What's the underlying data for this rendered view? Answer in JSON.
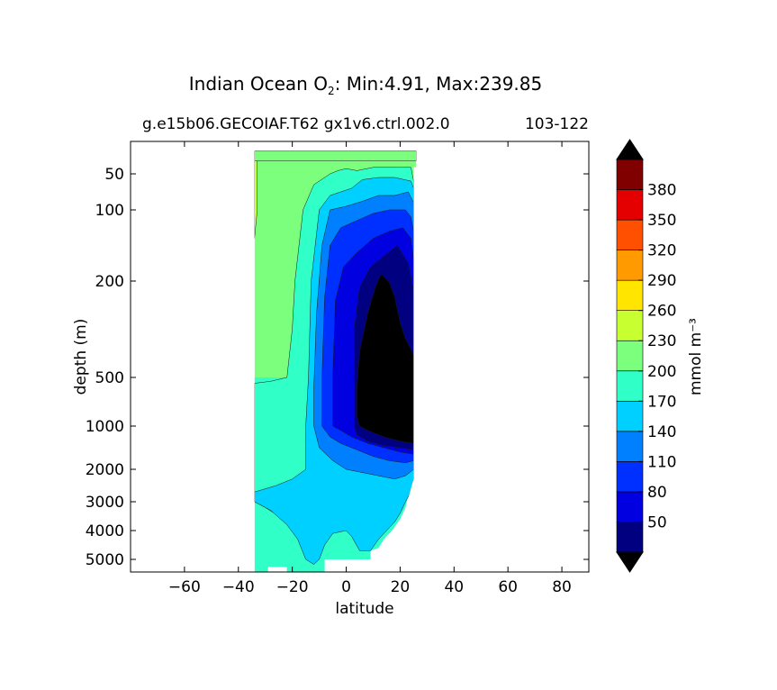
{
  "title": "Indian Ocean O",
  "title_sub": "2",
  "title_rest": ": Min:4.91, Max:239.85",
  "subtitle_left": "g.e15b06.GECOIAF.T62 gx1v6.ctrl.002.0",
  "subtitle_right": "103-122",
  "chart_data": {
    "type": "heatmap",
    "title": "Indian Ocean O2: Min:4.91, Max:239.85",
    "xlabel": "latitude",
    "ylabel": "depth (m)",
    "xlim": [
      -80,
      90
    ],
    "xticks": [
      -60,
      -40,
      -20,
      0,
      20,
      40,
      60,
      80
    ],
    "xtick_labels": [
      "−60",
      "−40",
      "−20",
      "0",
      "20",
      "40",
      "60",
      "80"
    ],
    "yticks": [
      50,
      100,
      200,
      500,
      1000,
      2000,
      3000,
      4000,
      5000
    ],
    "ytick_labels": [
      "50",
      "100",
      "200",
      "500",
      "1000",
      "2000",
      "3000",
      "4000",
      "5000"
    ],
    "yscale": "custom depth (compressed upper ocean), inverted",
    "colorbar": {
      "label": "mmol m⁻³",
      "levels": [
        20,
        50,
        80,
        110,
        140,
        170,
        200,
        230,
        260,
        290,
        320,
        350,
        380,
        410
      ],
      "tick_labels": [
        "50",
        "80",
        "110",
        "140",
        "170",
        "200",
        "230",
        "260",
        "290",
        "320",
        "350",
        "380"
      ],
      "colors": [
        "#000080",
        "#0000e0",
        "#0030ff",
        "#0080ff",
        "#00d0ff",
        "#30ffc8",
        "#7cff7c",
        "#c8ff30",
        "#ffe500",
        "#ff9a00",
        "#ff4f00",
        "#e40000",
        "#800000"
      ],
      "extend_low_color": "#000000",
      "extend_high_color": "#000000"
    },
    "contours": [
      {
        "level": 230,
        "color": "#c8ff30",
        "pts": [
          [
            -34,
            15
          ],
          [
            -33,
            15
          ],
          [
            -33,
            100
          ],
          [
            -34,
            140
          ]
        ]
      },
      {
        "level": 200,
        "color": "#7cff7c",
        "pts": [
          [
            -34,
            15
          ],
          [
            26,
            15
          ],
          [
            26,
            30
          ],
          [
            -34,
            30
          ]
        ]
      },
      {
        "level": 170,
        "color": "#30ffc8",
        "pts": [
          [
            -34,
            560
          ],
          [
            -28,
            540
          ],
          [
            -22,
            500
          ],
          [
            -20,
            350
          ],
          [
            -19,
            200
          ],
          [
            -16,
            100
          ],
          [
            -12,
            65
          ],
          [
            -6,
            50
          ],
          [
            -3,
            45
          ],
          [
            0,
            42
          ],
          [
            4,
            45
          ],
          [
            10,
            40
          ],
          [
            20,
            40
          ],
          [
            24,
            40
          ],
          [
            25,
            60
          ],
          [
            25,
            1500
          ],
          [
            24,
            2000
          ],
          [
            20,
            2400
          ],
          [
            15,
            2800
          ],
          [
            10,
            3200
          ],
          [
            0,
            3400
          ],
          [
            -5,
            3500
          ],
          [
            -10,
            3700
          ],
          [
            -15,
            3800
          ],
          [
            -20,
            3700
          ],
          [
            -25,
            3500
          ],
          [
            -30,
            3200
          ],
          [
            -34,
            3000
          ]
        ]
      },
      {
        "level": 140,
        "color": "#00d0ff",
        "pts": [
          [
            -15,
            2000
          ],
          [
            -15,
            1000
          ],
          [
            -14,
            500
          ],
          [
            -13,
            200
          ],
          [
            -10,
            100
          ],
          [
            -6,
            80
          ],
          [
            -2,
            75
          ],
          [
            2,
            70
          ],
          [
            6,
            58
          ],
          [
            12,
            55
          ],
          [
            18,
            55
          ],
          [
            24,
            60
          ],
          [
            25,
            70
          ],
          [
            25,
            2300
          ],
          [
            24,
            2700
          ],
          [
            22,
            3000
          ],
          [
            20,
            3400
          ],
          [
            18,
            3700
          ],
          [
            15,
            4000
          ],
          [
            12,
            4300
          ],
          [
            9,
            4700
          ],
          [
            5,
            4700
          ],
          [
            2,
            4200
          ],
          [
            0,
            4000
          ],
          [
            -5,
            4100
          ],
          [
            -8,
            4500
          ],
          [
            -10,
            5000
          ],
          [
            -12,
            5200
          ],
          [
            -15,
            5000
          ],
          [
            -18,
            4300
          ],
          [
            -22,
            3800
          ],
          [
            -28,
            3300
          ],
          [
            -34,
            3000
          ],
          [
            -34,
            2700
          ],
          [
            -26,
            2500
          ],
          [
            -20,
            2300
          ]
        ]
      },
      {
        "level": 110,
        "color": "#0080ff",
        "pts": [
          [
            -12,
            1000
          ],
          [
            -12,
            600
          ],
          [
            -11,
            300
          ],
          [
            -9,
            150
          ],
          [
            -6,
            100
          ],
          [
            0,
            95
          ],
          [
            6,
            88
          ],
          [
            12,
            80
          ],
          [
            18,
            80
          ],
          [
            23,
            75
          ],
          [
            25,
            90
          ],
          [
            25,
            2000
          ],
          [
            22,
            2200
          ],
          [
            18,
            2300
          ],
          [
            12,
            2200
          ],
          [
            6,
            2100
          ],
          [
            0,
            2000
          ],
          [
            -5,
            1800
          ],
          [
            -10,
            1500
          ]
        ]
      },
      {
        "level": 80,
        "color": "#0030ff",
        "pts": [
          [
            -9,
            1000
          ],
          [
            -9,
            500
          ],
          [
            -8,
            250
          ],
          [
            -6,
            150
          ],
          [
            -2,
            125
          ],
          [
            4,
            115
          ],
          [
            10,
            105
          ],
          [
            16,
            100
          ],
          [
            22,
            100
          ],
          [
            24,
            110
          ],
          [
            25,
            130
          ],
          [
            25,
            1800
          ],
          [
            22,
            1850
          ],
          [
            16,
            1800
          ],
          [
            10,
            1700
          ],
          [
            4,
            1550
          ],
          [
            -2,
            1400
          ],
          [
            -6,
            1250
          ]
        ]
      },
      {
        "level": 50,
        "color": "#0000e0",
        "pts": [
          [
            -5,
            1000
          ],
          [
            -5,
            500
          ],
          [
            -4,
            260
          ],
          [
            -1,
            180
          ],
          [
            4,
            160
          ],
          [
            10,
            140
          ],
          [
            16,
            130
          ],
          [
            21,
            125
          ],
          [
            24,
            140
          ],
          [
            25,
            170
          ],
          [
            25,
            1650
          ],
          [
            20,
            1600
          ],
          [
            14,
            1500
          ],
          [
            8,
            1400
          ],
          [
            2,
            1250
          ],
          [
            -2,
            1100
          ]
        ]
      },
      {
        "level": 20,
        "color": "#000080",
        "pts": [
          [
            3,
            1000
          ],
          [
            3,
            600
          ],
          [
            3,
            350
          ],
          [
            5,
            220
          ],
          [
            9,
            180
          ],
          [
            14,
            165
          ],
          [
            19,
            150
          ],
          [
            23,
            175
          ],
          [
            25,
            230
          ],
          [
            25,
            1550
          ],
          [
            20,
            1500
          ],
          [
            14,
            1450
          ],
          [
            8,
            1350
          ],
          [
            4,
            1200
          ]
        ]
      },
      {
        "level": 5,
        "color": "#000000",
        "pts": [
          [
            4,
            900
          ],
          [
            4,
            600
          ],
          [
            5,
            420
          ],
          [
            8,
            300
          ],
          [
            11,
            215
          ],
          [
            13,
            190
          ],
          [
            16,
            205
          ],
          [
            18,
            250
          ],
          [
            20,
            330
          ],
          [
            22,
            380
          ],
          [
            25,
            430
          ],
          [
            25,
            1400
          ],
          [
            20,
            1350
          ],
          [
            14,
            1250
          ],
          [
            8,
            1100
          ],
          [
            5,
            1000
          ]
        ]
      }
    ]
  }
}
